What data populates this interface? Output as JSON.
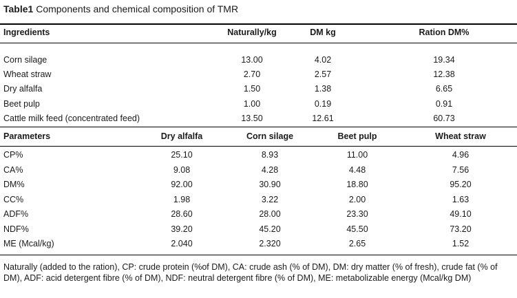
{
  "caption": {
    "label": "Table1",
    "text": "Components and chemical composition of TMR"
  },
  "table1": {
    "headers": [
      "Ingredients",
      "Naturally/kg",
      "DM kg",
      "Ration DM%"
    ],
    "rows": [
      [
        "Corn silage",
        "13.00",
        "4.02",
        "19.34"
      ],
      [
        "Wheat straw",
        "2.70",
        "2.57",
        "12.38"
      ],
      [
        "Dry alfalfa",
        "1.50",
        "1.38",
        "6.65"
      ],
      [
        "Beet pulp",
        "1.00",
        "0.19",
        "0.91"
      ],
      [
        "Cattle milk feed (concentrated feed)",
        "13.50",
        "12.61",
        "60.73"
      ]
    ]
  },
  "table2": {
    "headers": [
      "Parameters",
      "Dry alfalfa",
      "Corn silage",
      "Beet pulp",
      "Wheat straw"
    ],
    "rows": [
      [
        "CP%",
        "25.10",
        "8.93",
        "11.00",
        "4.96"
      ],
      [
        "CA%",
        "9.08",
        "4.28",
        "4.48",
        "7.56"
      ],
      [
        "DM%",
        "92.00",
        "30.90",
        "18.80",
        "95.20"
      ],
      [
        "CC%",
        "1.98",
        "3.22",
        "2.00",
        "1.63"
      ],
      [
        "ADF%",
        "28.60",
        "28.00",
        "23.30",
        "49.10"
      ],
      [
        "NDF%",
        "39.20",
        "45.20",
        "45.50",
        "73.20"
      ],
      [
        "ME (Mcal/kg)",
        "2.040",
        "2.320",
        "2.65",
        "1.52"
      ]
    ]
  },
  "footnote": "Naturally (added to the ration), CP: crude protein (%of DM), CA: crude ash (% of DM), DM: dry matter (% of fresh), crude fat (% of DM), ADF: acid detergent fibre (% of DM), NDF: neutral detergent fibre (% of DM), ME: metabolizable energy (Mcal/kg DM)"
}
